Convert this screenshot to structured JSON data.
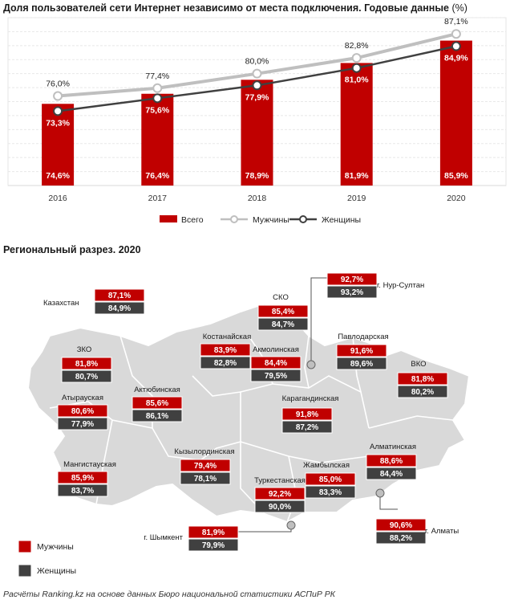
{
  "chart_data": [
    {
      "type": "bar+line",
      "title": "Доля пользователей сети Интернет независимо от места подключения. Годовые данные",
      "unit": "(%)",
      "categories": [
        "2016",
        "2017",
        "2018",
        "2019",
        "2020"
      ],
      "ylim": [
        60,
        90
      ],
      "grid": true,
      "legend_position": "bottom",
      "series": [
        {
          "name": "Всего",
          "kind": "bar",
          "color": "#c00000",
          "values": [
            74.6,
            76.4,
            78.9,
            81.9,
            85.9
          ],
          "labels": [
            "74,6%",
            "76,4%",
            "78,9%",
            "81,9%",
            "85,9%"
          ]
        },
        {
          "name": "Мужчины",
          "kind": "line",
          "color": "#bfbfbf",
          "values": [
            76.0,
            77.4,
            80.0,
            82.8,
            87.1
          ],
          "labels": [
            "76,0%",
            "77,4%",
            "80,0%",
            "82,8%",
            "87,1%"
          ]
        },
        {
          "name": "Женщины",
          "kind": "line",
          "color": "#404040",
          "values": [
            73.3,
            75.6,
            77.9,
            81.0,
            84.9
          ],
          "labels": [
            "73,3%",
            "75,6%",
            "77,9%",
            "81,0%",
            "84,9%"
          ]
        }
      ]
    },
    {
      "type": "table",
      "title": "Региональный разрез. 2020",
      "legend": [
        {
          "name": "Мужчины",
          "color": "#c00000"
        },
        {
          "name": "Женщины",
          "color": "#404040"
        }
      ],
      "regions": [
        {
          "name": "Казахстан",
          "men": "87,1%",
          "women": "84,9%"
        },
        {
          "name": "г. Нур-Султан",
          "men": "92,7%",
          "women": "93,2%"
        },
        {
          "name": "СКО",
          "men": "85,4%",
          "women": "84,7%"
        },
        {
          "name": "Костанайская",
          "men": "83,9%",
          "women": "82,8%"
        },
        {
          "name": "Акмолинская",
          "men": "84,4%",
          "women": "79,5%"
        },
        {
          "name": "Павлодарская",
          "men": "91,6%",
          "women": "89,6%"
        },
        {
          "name": "ЗКО",
          "men": "81,8%",
          "women": "80,7%"
        },
        {
          "name": "ВКО",
          "men": "81,8%",
          "women": "80,2%"
        },
        {
          "name": "Атырауская",
          "men": "80,6%",
          "women": "77,9%"
        },
        {
          "name": "Актюбинская",
          "men": "85,6%",
          "women": "86,1%"
        },
        {
          "name": "Карагандинская",
          "men": "91,8%",
          "women": "87,2%"
        },
        {
          "name": "Мангистауская",
          "men": "85,9%",
          "women": "83,7%"
        },
        {
          "name": "Кызылординская",
          "men": "79,4%",
          "women": "78,1%"
        },
        {
          "name": "Жамбылская",
          "men": "85,0%",
          "women": "83,3%"
        },
        {
          "name": "Алматинская",
          "men": "88,6%",
          "women": "84,4%"
        },
        {
          "name": "Туркестанская",
          "men": "92,2%",
          "women": "90,0%"
        },
        {
          "name": "г. Шымкент",
          "men": "81,9%",
          "women": "79,9%"
        },
        {
          "name": "г. Алматы",
          "men": "90,6%",
          "women": "88,2%"
        }
      ]
    }
  ],
  "footer": "Расчёты Ranking.kz на основе данных Бюро национальной статистики АСПиР РК"
}
